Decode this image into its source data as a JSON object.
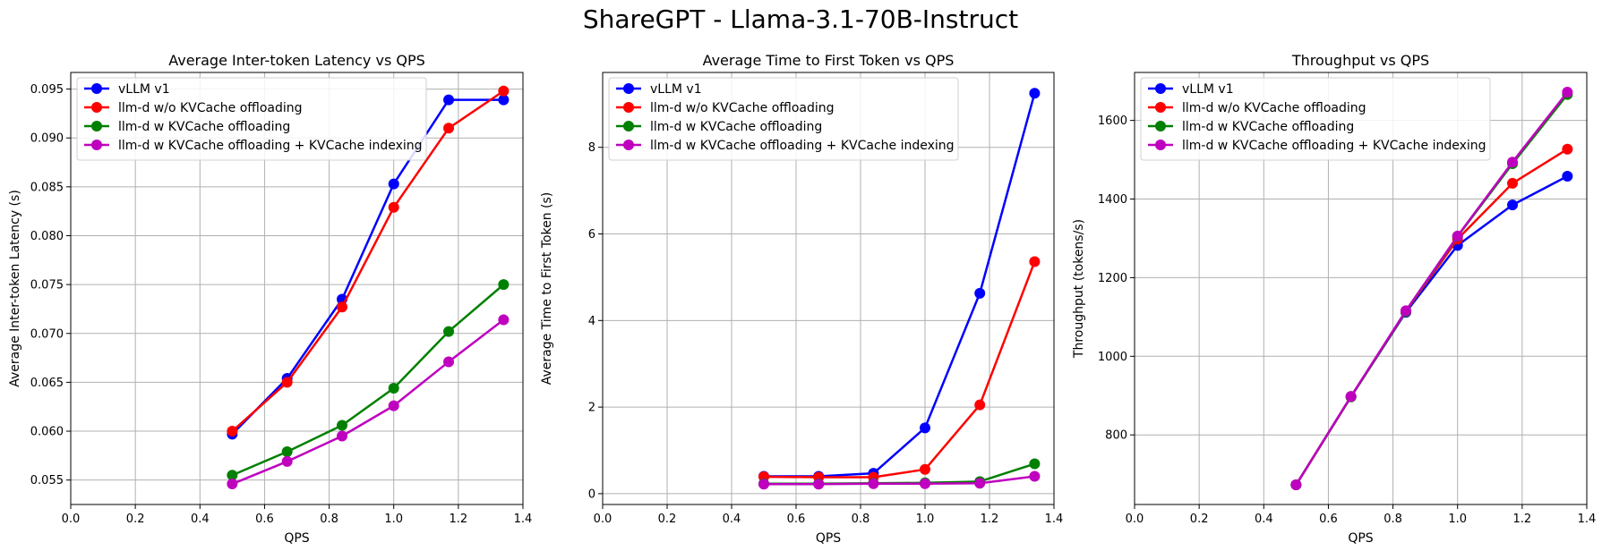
{
  "figure": {
    "title": "ShareGPT - Llama-3.1-70B-Instruct"
  },
  "legend_location": "upper-left",
  "chart_data": [
    {
      "type": "line",
      "title": "Average Inter-token Latency vs QPS",
      "xlabel": "QPS",
      "ylabel": "Average Inter-token Latency (s)",
      "xlim": [
        0.0,
        1.4
      ],
      "ylim": [
        0.0525,
        0.0967
      ],
      "xticks": [
        "0.0",
        "0.2",
        "0.4",
        "0.6",
        "0.8",
        "1.0",
        "1.2",
        "1.4"
      ],
      "yticks": [
        "0.055",
        "0.060",
        "0.065",
        "0.070",
        "0.075",
        "0.080",
        "0.085",
        "0.090",
        "0.095"
      ],
      "grid": true,
      "x": [
        0.5,
        0.67,
        0.84,
        1.0,
        1.17,
        1.34
      ],
      "series": [
        {
          "name": "vLLM v1",
          "color": "#0000ff",
          "values": [
            0.0597,
            0.0654,
            0.0735,
            0.0853,
            0.0939,
            0.0939
          ]
        },
        {
          "name": "llm-d w/o KVCache offloading",
          "color": "#ff0000",
          "values": [
            0.06,
            0.065,
            0.0727,
            0.0829,
            0.091,
            0.0948
          ]
        },
        {
          "name": "llm-d w KVCache offloading",
          "color": "#008000",
          "values": [
            0.0555,
            0.0579,
            0.0606,
            0.0644,
            0.0702,
            0.075
          ]
        },
        {
          "name": "llm-d w KVCache offloading + KVCache indexing",
          "color": "#bf00bf",
          "values": [
            0.0546,
            0.0569,
            0.0595,
            0.0626,
            0.0671,
            0.0714
          ]
        }
      ]
    },
    {
      "type": "line",
      "title": "Average Time to First Token vs QPS",
      "xlabel": "QPS",
      "ylabel": "Average Time to First Token (s)",
      "xlim": [
        0.0,
        1.4
      ],
      "ylim": [
        -0.25,
        9.73
      ],
      "xticks": [
        "0.0",
        "0.2",
        "0.4",
        "0.6",
        "0.8",
        "1.0",
        "1.2",
        "1.4"
      ],
      "yticks": [
        "0",
        "2",
        "4",
        "6",
        "8"
      ],
      "grid": true,
      "x": [
        0.5,
        0.67,
        0.84,
        1.0,
        1.17,
        1.34
      ],
      "series": [
        {
          "name": "vLLM v1",
          "color": "#0000ff",
          "values": [
            0.4,
            0.4,
            0.47,
            1.52,
            4.63,
            9.25
          ]
        },
        {
          "name": "llm-d w/o KVCache offloading",
          "color": "#ff0000",
          "values": [
            0.39,
            0.38,
            0.38,
            0.56,
            2.05,
            5.36
          ]
        },
        {
          "name": "llm-d w KVCache offloading",
          "color": "#008000",
          "values": [
            0.23,
            0.23,
            0.24,
            0.25,
            0.28,
            0.69
          ]
        },
        {
          "name": "llm-d w KVCache offloading + KVCache indexing",
          "color": "#bf00bf",
          "values": [
            0.22,
            0.22,
            0.23,
            0.23,
            0.24,
            0.4
          ]
        }
      ]
    },
    {
      "type": "line",
      "title": "Throughput vs QPS",
      "xlabel": "QPS",
      "ylabel": "Throughput (tokens/s)",
      "xlim": [
        0.0,
        1.4
      ],
      "ylim": [
        623,
        1722
      ],
      "xticks": [
        "0.0",
        "0.2",
        "0.4",
        "0.6",
        "0.8",
        "1.0",
        "1.2",
        "1.4"
      ],
      "yticks": [
        "800",
        "1000",
        "1200",
        "1400",
        "1600"
      ],
      "grid": true,
      "x": [
        0.5,
        0.67,
        0.84,
        1.0,
        1.17,
        1.34
      ],
      "series": [
        {
          "name": "vLLM v1",
          "color": "#0000ff",
          "values": [
            673,
            897,
            1112,
            1282,
            1385,
            1458
          ]
        },
        {
          "name": "llm-d w/o KVCache offloading",
          "color": "#ff0000",
          "values": [
            673,
            897,
            1114,
            1298,
            1440,
            1527
          ]
        },
        {
          "name": "llm-d w KVCache offloading",
          "color": "#008000",
          "values": [
            673,
            897,
            1114,
            1305,
            1490,
            1666
          ]
        },
        {
          "name": "llm-d w KVCache offloading + KVCache indexing",
          "color": "#bf00bf",
          "values": [
            673,
            898,
            1116,
            1306,
            1494,
            1672
          ]
        }
      ]
    }
  ]
}
